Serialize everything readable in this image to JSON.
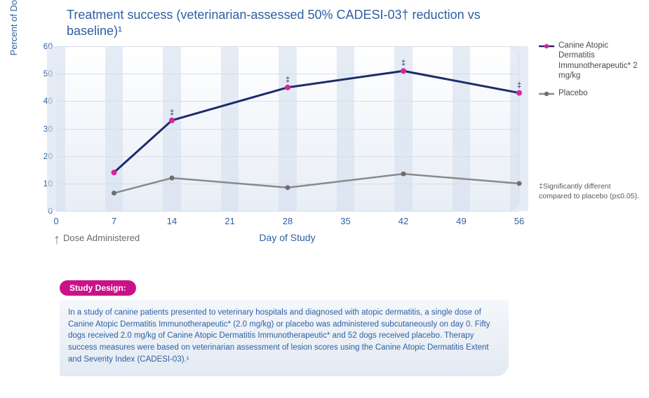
{
  "chart": {
    "type": "line",
    "title": "Treatment success (veterinarian-assessed 50% CADESI-03† reduction vs baseline)¹",
    "y_axis_label": "Percent of Dogs Achieving Treatment Success",
    "x_axis_label": "Day of Study",
    "x_ticks": [
      0,
      7,
      14,
      21,
      28,
      35,
      42,
      49,
      56
    ],
    "y_ticks": [
      0,
      10,
      20,
      30,
      40,
      50,
      60
    ],
    "xlim": [
      0,
      56
    ],
    "ylim": [
      0,
      60
    ],
    "x_tick_band_width_days": 2.2,
    "background_gradient_top": "#ffffff",
    "background_gradient_bottom": "#e8eef6",
    "grid_color": "#d8dde6",
    "band_color": "#d4e0ef",
    "axis_text_color": "#2e5fa3",
    "series": [
      {
        "id": "treatment",
        "label": "Canine Atopic Dermatitis Immunotherapeutic* 2 mg/kg",
        "x": [
          7,
          14,
          28,
          42,
          56
        ],
        "y": [
          14,
          33,
          45,
          51,
          43
        ],
        "line_color": "#1d2c6b",
        "marker_color": "#d9239b",
        "line_width": 3,
        "marker_radius": 4,
        "point_annotations": [
          "",
          "‡",
          "‡",
          "‡",
          "‡"
        ]
      },
      {
        "id": "placebo",
        "label": "Placebo",
        "x": [
          7,
          14,
          28,
          42,
          56
        ],
        "y": [
          6.5,
          12,
          8.5,
          13.5,
          10
        ],
        "line_color": "#8a8a8a",
        "marker_color": "#6e6e6e",
        "line_width": 2.5,
        "marker_radius": 3.5,
        "point_annotations": [
          "",
          "",
          "",
          "",
          ""
        ]
      }
    ],
    "dose_arrow": {
      "at_x": 0,
      "label": "Dose Administered"
    }
  },
  "legend": {
    "items": [
      {
        "series_id": "treatment"
      },
      {
        "series_id": "placebo"
      }
    ]
  },
  "footnote": "‡Significantly different compared to placebo (p≤0.05).",
  "study_design": {
    "badge": "Study Design:",
    "body": "In a study of canine patients presented to veterinary hospitals and diagnosed with atopic dermatitis, a single dose of Canine Atopic Dermatitis Immunotherapeutic* (2.0 mg/kg) or placebo was administered subcutaneously on day 0. Fifty dogs received 2.0 mg/kg of Canine Atopic Dermatitis Immunotherapeutic* and 52 dogs received placebo. Therapy success measures were based on veterinarian assessment of lesion scores using the Canine Atopic Dermatitis Extent and Severity Index (CADESI-03).¹"
  }
}
